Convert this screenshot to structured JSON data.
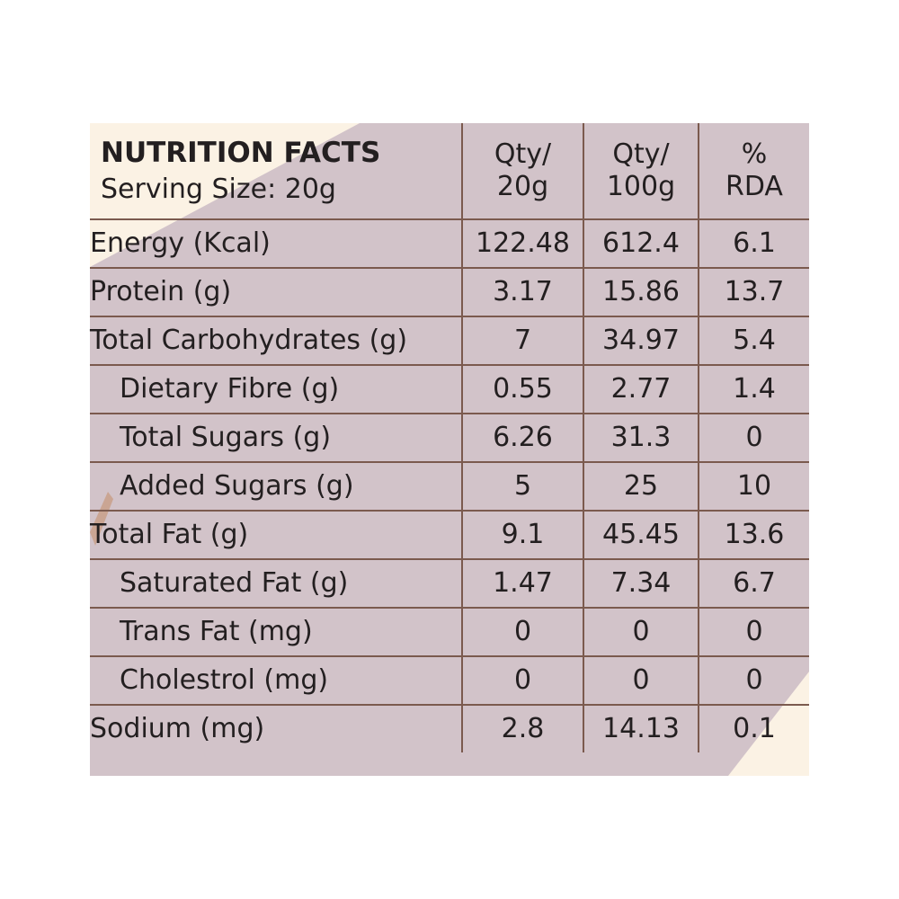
{
  "header": {
    "title": "NUTRITION FACTS",
    "serving": "Serving Size: 20g",
    "col1_line1": "Qty/",
    "col1_line2": "20g",
    "col2_line1": "Qty/",
    "col2_line2": "100g",
    "col3_line1": "%",
    "col3_line2": "RDA"
  },
  "rows": [
    {
      "name": "Energy (Kcal)",
      "per_serving": "122.48",
      "per_100g": "612.4",
      "rda": "6.1"
    },
    {
      "name": "Protein (g)",
      "per_serving": "3.17",
      "per_100g": "15.86",
      "rda": "13.7"
    },
    {
      "name": "Total Carbohydrates (g)",
      "per_serving": "7",
      "per_100g": "34.97",
      "rda": "5.4"
    },
    {
      "name": "Dietary Fibre (g)",
      "per_serving": "0.55",
      "per_100g": "2.77",
      "rda": "1.4"
    },
    {
      "name": "Total Sugars (g)",
      "per_serving": "6.26",
      "per_100g": "31.3",
      "rda": "0"
    },
    {
      "name": "Added Sugars (g)",
      "per_serving": "5",
      "per_100g": "25",
      "rda": "10"
    },
    {
      "name": "Total Fat (g)",
      "per_serving": "9.1",
      "per_100g": "45.45",
      "rda": "13.6"
    },
    {
      "name": "Saturated Fat (g)",
      "per_serving": "1.47",
      "per_100g": "7.34",
      "rda": "6.7"
    },
    {
      "name": "Trans Fat (mg)",
      "per_serving": "0",
      "per_100g": "0",
      "rda": "0"
    },
    {
      "name": "Cholestrol (mg)",
      "per_serving": "0",
      "per_100g": "0",
      "rda": "0"
    },
    {
      "name": "Sodium (mg)",
      "per_serving": "2.8",
      "per_100g": "14.13",
      "rda": "0.1"
    }
  ],
  "colors": {
    "background_cream": "#fbf2e4",
    "background_mauve": "#d2c3c9",
    "border_brown": "#7b5a4e",
    "text": "#231f20"
  }
}
